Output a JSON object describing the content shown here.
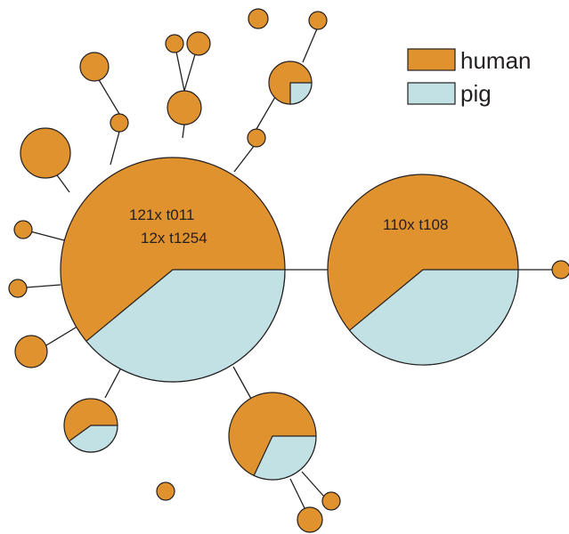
{
  "colors": {
    "human": "#e0922f",
    "pig": "#c2e1e5",
    "outline": "#231f20"
  },
  "legend": {
    "items": [
      {
        "key": "human",
        "label": "human"
      },
      {
        "key": "pig",
        "label": "pig"
      }
    ]
  },
  "nodes": {
    "main": {
      "lines": [
        "121x t011",
        "12x t1254"
      ],
      "pig_fraction": 0.39
    },
    "second": {
      "lines": [
        "110x t108"
      ],
      "pig_fraction": 0.39
    },
    "upper_mixed": {
      "pig_fraction": 0.25
    },
    "lower_left_mixed": {
      "pig_fraction": 0.4
    },
    "lower_right_mixed": {
      "pig_fraction": 0.32
    }
  }
}
